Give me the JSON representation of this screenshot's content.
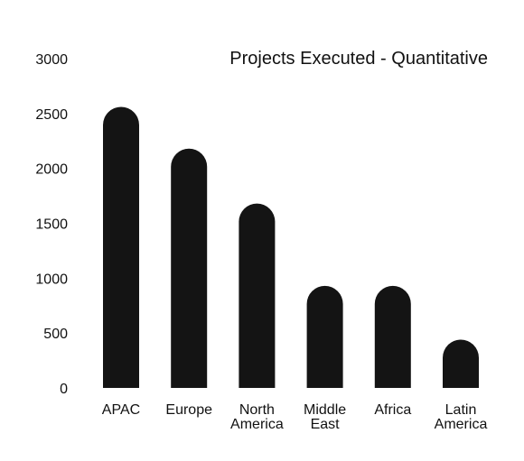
{
  "chart_data": {
    "type": "bar",
    "title": "Projects Executed - Quantitative",
    "xlabel": "",
    "ylabel": "",
    "categories": [
      "APAC",
      "Europe",
      "North America",
      "Middle East",
      "Africa",
      "Latin America"
    ],
    "category_lines": [
      [
        "APAC"
      ],
      [
        "Europe"
      ],
      [
        "North",
        "America"
      ],
      [
        "Middle",
        "East"
      ],
      [
        "Africa"
      ],
      [
        "Latin",
        "America"
      ]
    ],
    "values": [
      2560,
      2180,
      1680,
      930,
      930,
      440
    ],
    "ylim": [
      0,
      3000
    ],
    "yticks": [
      0,
      500,
      1000,
      1500,
      2000,
      2500,
      3000
    ],
    "ytick_labels": [
      "0",
      "500",
      "1000",
      "1500",
      "2000",
      "2500",
      "3000"
    ],
    "grid": false,
    "legend": "none",
    "bar_color": "#141414",
    "bar_style": "rounded-top"
  }
}
